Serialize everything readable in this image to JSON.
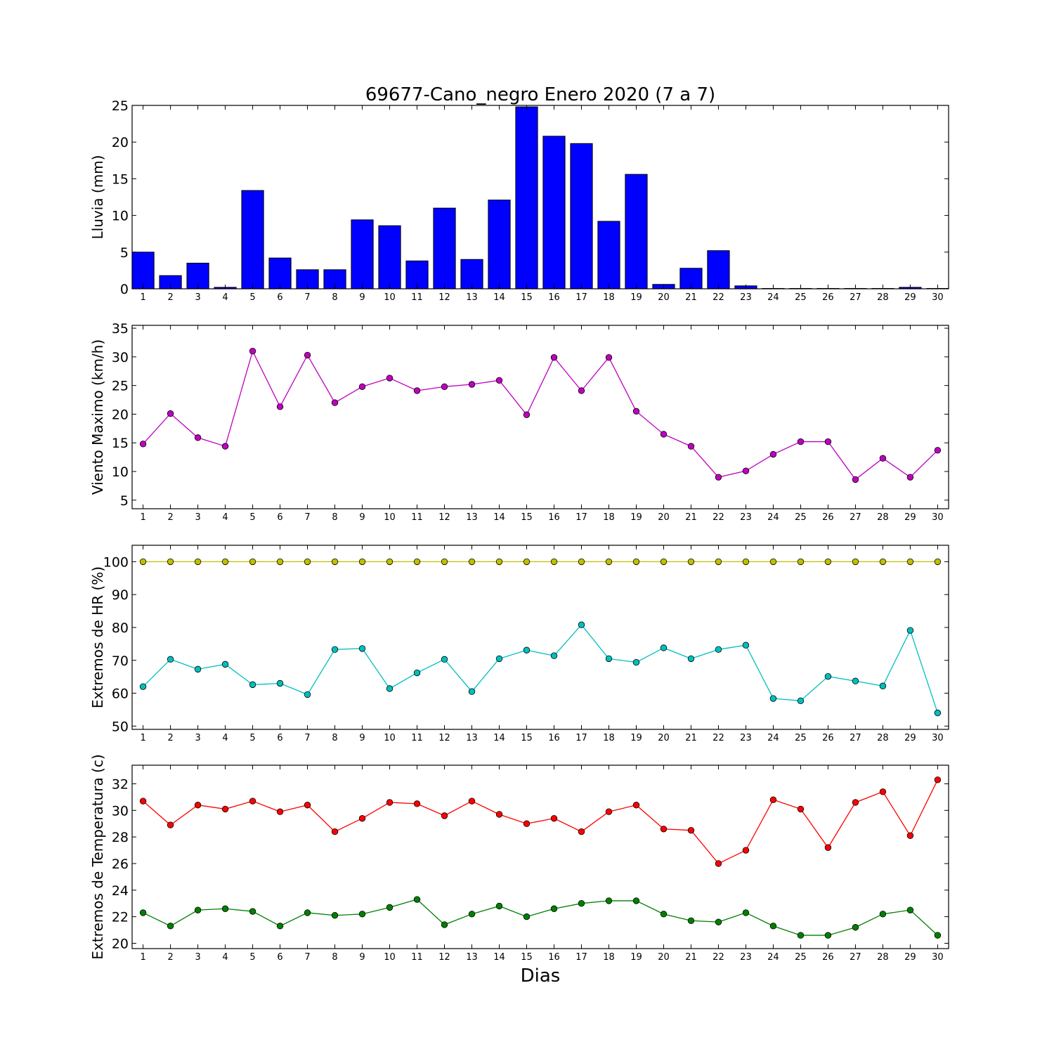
{
  "chart_data": [
    {
      "type": "bar",
      "title": "69677-Cano_negro Enero 2020  (7 a 7)",
      "ylabel": "Lluvia (mm)",
      "xlabel": "",
      "categories": [
        1,
        2,
        3,
        4,
        5,
        6,
        7,
        8,
        9,
        10,
        11,
        12,
        13,
        14,
        15,
        16,
        17,
        18,
        19,
        20,
        21,
        22,
        23,
        24,
        25,
        26,
        27,
        28,
        29,
        30
      ],
      "ylim": [
        0,
        25
      ],
      "yticks": [
        0,
        5,
        10,
        15,
        20,
        25
      ],
      "grid": false,
      "color": "#0000ff",
      "series": [
        {
          "values": [
            5.0,
            1.8,
            3.5,
            0.2,
            13.4,
            4.2,
            2.6,
            2.6,
            9.4,
            8.6,
            3.8,
            11.0,
            4.0,
            12.1,
            24.8,
            20.8,
            19.8,
            9.2,
            15.6,
            0.6,
            2.8,
            5.2,
            0.4,
            0.05,
            0.05,
            0.05,
            0.05,
            0.05,
            0.2,
            0.05
          ]
        }
      ]
    },
    {
      "type": "line",
      "ylabel": "Viento Maximo (km/h)",
      "xlabel": "",
      "x": [
        1,
        2,
        3,
        4,
        5,
        6,
        7,
        8,
        9,
        10,
        11,
        12,
        13,
        14,
        15,
        16,
        17,
        18,
        19,
        20,
        21,
        22,
        23,
        24,
        25,
        26,
        27,
        28,
        29,
        30
      ],
      "ylim": [
        3.5,
        35.5
      ],
      "yticks": [
        5,
        10,
        15,
        20,
        25,
        30,
        35
      ],
      "grid": false,
      "series": [
        {
          "color": "#bf00bf",
          "values": [
            14.8,
            20.1,
            15.9,
            14.4,
            31.0,
            21.3,
            30.3,
            22.0,
            24.8,
            26.3,
            24.1,
            24.8,
            25.2,
            25.9,
            19.9,
            29.9,
            24.1,
            29.9,
            20.5,
            16.5,
            14.4,
            9.0,
            10.1,
            13.0,
            15.2,
            15.2,
            8.6,
            12.3,
            9.0,
            13.7
          ]
        }
      ]
    },
    {
      "type": "line",
      "ylabel": "Extremos de HR (%)",
      "xlabel": "",
      "x": [
        1,
        2,
        3,
        4,
        5,
        6,
        7,
        8,
        9,
        10,
        11,
        12,
        13,
        14,
        15,
        16,
        17,
        18,
        19,
        20,
        21,
        22,
        23,
        24,
        25,
        26,
        27,
        28,
        29,
        30
      ],
      "ylim": [
        49,
        105
      ],
      "yticks": [
        50,
        60,
        70,
        80,
        90,
        100
      ],
      "grid": false,
      "series": [
        {
          "color": "#bfbf00",
          "values": [
            100,
            100,
            100,
            100,
            100,
            100,
            100,
            100,
            100,
            100,
            100,
            100,
            100,
            100,
            100,
            100,
            100,
            100,
            100,
            100,
            100,
            100,
            100,
            100,
            100,
            100,
            100,
            100,
            100,
            100
          ]
        },
        {
          "color": "#00bfbf",
          "values": [
            62.0,
            70.3,
            67.3,
            68.8,
            62.6,
            63.0,
            59.6,
            73.3,
            73.6,
            61.4,
            66.2,
            70.3,
            60.5,
            70.5,
            73.1,
            71.4,
            80.8,
            70.5,
            69.4,
            73.8,
            70.5,
            73.3,
            74.6,
            58.4,
            57.7,
            65.1,
            63.7,
            62.2,
            79.1,
            54.0
          ]
        }
      ]
    },
    {
      "type": "line",
      "ylabel": "Extremos de Temperatura (c)",
      "xlabel": "Dias",
      "x": [
        1,
        2,
        3,
        4,
        5,
        6,
        7,
        8,
        9,
        10,
        11,
        12,
        13,
        14,
        15,
        16,
        17,
        18,
        19,
        20,
        21,
        22,
        23,
        24,
        25,
        26,
        27,
        28,
        29,
        30
      ],
      "ylim": [
        19.6,
        33.4
      ],
      "yticks": [
        20,
        22,
        24,
        26,
        28,
        30,
        32
      ],
      "grid": false,
      "series": [
        {
          "color": "#ff0000",
          "values": [
            30.7,
            28.9,
            30.4,
            30.1,
            30.7,
            29.9,
            30.4,
            28.4,
            29.4,
            30.6,
            30.5,
            29.6,
            30.7,
            29.7,
            29.0,
            29.4,
            28.4,
            29.9,
            30.4,
            28.6,
            28.5,
            26.0,
            27.0,
            30.8,
            30.1,
            27.2,
            30.6,
            31.4,
            28.1,
            32.3
          ]
        },
        {
          "color": "#008000",
          "values": [
            22.3,
            21.3,
            22.5,
            22.6,
            22.4,
            21.3,
            22.3,
            22.1,
            22.2,
            22.7,
            23.3,
            21.4,
            22.2,
            22.8,
            22.0,
            22.6,
            23.0,
            23.2,
            23.2,
            22.2,
            21.7,
            21.6,
            22.3,
            21.3,
            20.6,
            20.6,
            21.2,
            22.2,
            22.5,
            20.6
          ]
        }
      ]
    }
  ]
}
